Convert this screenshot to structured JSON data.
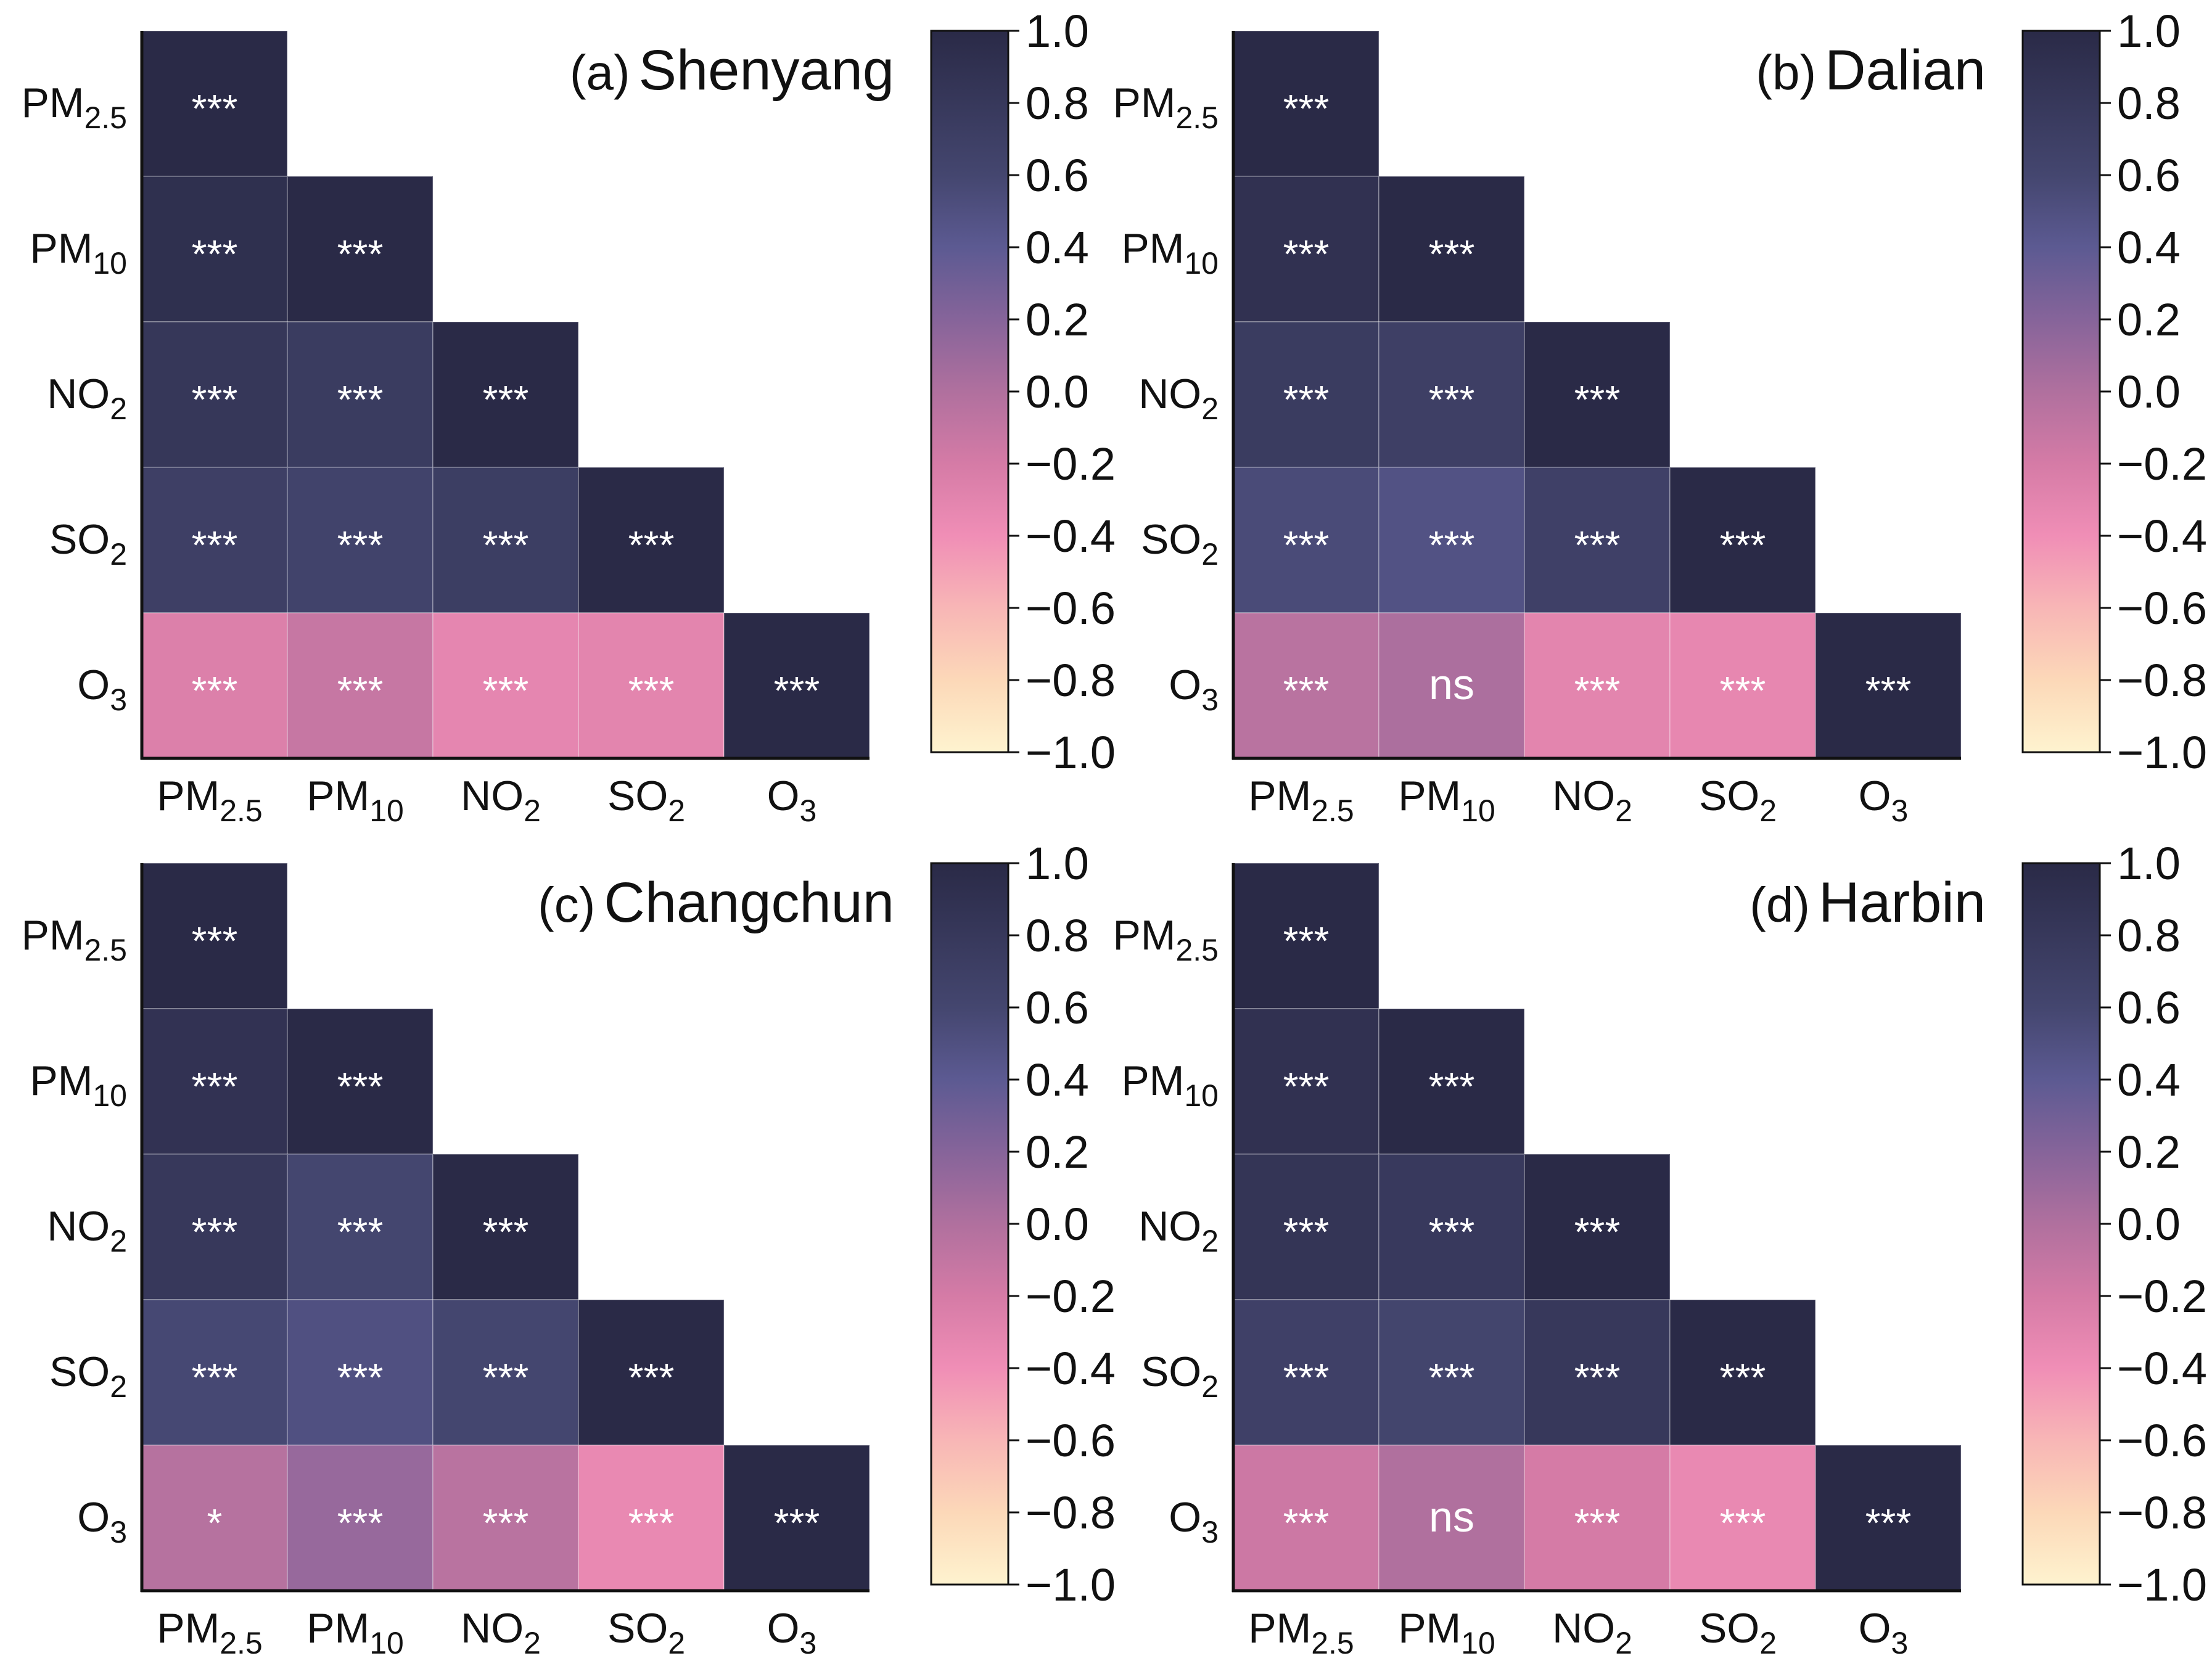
{
  "labels": [
    {
      "base": "PM",
      "sub": "2.5"
    },
    {
      "base": "PM",
      "sub": "10"
    },
    {
      "base": "NO",
      "sub": "2"
    },
    {
      "base": "SO",
      "sub": "2"
    },
    {
      "base": "O",
      "sub": "3"
    }
  ],
  "colorbar": {
    "ticks": [
      "1.0",
      "0.8",
      "0.6",
      "0.4",
      "0.2",
      "0.0",
      "−0.2",
      "−0.4",
      "−0.6",
      "−0.8",
      "−1.0"
    ],
    "tick_values": [
      1.0,
      0.8,
      0.6,
      0.4,
      0.2,
      0.0,
      -0.2,
      -0.4,
      -0.6,
      -0.8,
      -1.0
    ],
    "stops": [
      {
        "v": 1.0,
        "color": "#2a2a47"
      },
      {
        "v": 0.6,
        "color": "#44466f"
      },
      {
        "v": 0.4,
        "color": "#5c5a92"
      },
      {
        "v": 0.2,
        "color": "#86649a"
      },
      {
        "v": 0.0,
        "color": "#b0709e"
      },
      {
        "v": -0.2,
        "color": "#d57ba6"
      },
      {
        "v": -0.4,
        "color": "#f08eb6"
      },
      {
        "v": -0.6,
        "color": "#f8b6b6"
      },
      {
        "v": -0.8,
        "color": "#fcd8b8"
      },
      {
        "v": -1.0,
        "color": "#fef3cf"
      }
    ]
  },
  "chart_data": [
    {
      "type": "heatmap",
      "title_prefix": "(a)",
      "title": "Shenyang",
      "rows": [
        "PM2.5",
        "PM10",
        "NO2",
        "SO2",
        "O3"
      ],
      "cols": [
        "PM2.5",
        "PM10",
        "NO2",
        "SO2",
        "O3"
      ],
      "values": [
        [
          1.0
        ],
        [
          0.92,
          1.0
        ],
        [
          0.82,
          0.75,
          1.0
        ],
        [
          0.7,
          0.64,
          0.72,
          1.0
        ],
        [
          -0.25,
          -0.12,
          -0.32,
          -0.3,
          1.0
        ]
      ],
      "significance": [
        [
          "***"
        ],
        [
          "***",
          "***"
        ],
        [
          "***",
          "***",
          "***"
        ],
        [
          "***",
          "***",
          "***",
          "***"
        ],
        [
          "***",
          "***",
          "***",
          "***",
          "***"
        ]
      ],
      "vmin": -1.0,
      "vmax": 1.0
    },
    {
      "type": "heatmap",
      "title_prefix": "(b)",
      "title": "Dalian",
      "rows": [
        "PM2.5",
        "PM10",
        "NO2",
        "SO2",
        "O3"
      ],
      "cols": [
        "PM2.5",
        "PM10",
        "NO2",
        "SO2",
        "O3"
      ],
      "values": [
        [
          1.0
        ],
        [
          0.9,
          1.0
        ],
        [
          0.75,
          0.7,
          1.0
        ],
        [
          0.55,
          0.48,
          0.68,
          1.0
        ],
        [
          -0.05,
          0.02,
          -0.3,
          -0.33,
          1.0
        ]
      ],
      "significance": [
        [
          "***"
        ],
        [
          "***",
          "***"
        ],
        [
          "***",
          "***",
          "***"
        ],
        [
          "***",
          "***",
          "***",
          "***"
        ],
        [
          "***",
          "ns",
          "***",
          "***",
          "***"
        ]
      ],
      "vmin": -1.0,
      "vmax": 1.0
    },
    {
      "type": "heatmap",
      "title_prefix": "(c)",
      "title": "Changchun",
      "rows": [
        "PM2.5",
        "PM10",
        "NO2",
        "SO2",
        "O3"
      ],
      "cols": [
        "PM2.5",
        "PM10",
        "NO2",
        "SO2",
        "O3"
      ],
      "values": [
        [
          1.0
        ],
        [
          0.88,
          1.0
        ],
        [
          0.8,
          0.6,
          1.0
        ],
        [
          0.58,
          0.5,
          0.6,
          1.0
        ],
        [
          -0.03,
          0.12,
          -0.05,
          -0.35,
          1.0
        ]
      ],
      "significance": [
        [
          "***"
        ],
        [
          "***",
          "***"
        ],
        [
          "***",
          "***",
          "***"
        ],
        [
          "***",
          "***",
          "***",
          "***"
        ],
        [
          "*",
          "***",
          "***",
          "***",
          "***"
        ]
      ],
      "vmin": -1.0,
      "vmax": 1.0
    },
    {
      "type": "heatmap",
      "title_prefix": "(d)",
      "title": "Harbin",
      "rows": [
        "PM2.5",
        "PM10",
        "NO2",
        "SO2",
        "O3"
      ],
      "cols": [
        "PM2.5",
        "PM10",
        "NO2",
        "SO2",
        "O3"
      ],
      "values": [
        [
          1.0
        ],
        [
          0.9,
          1.0
        ],
        [
          0.85,
          0.78,
          1.0
        ],
        [
          0.68,
          0.62,
          0.8,
          1.0
        ],
        [
          -0.15,
          0.0,
          -0.2,
          -0.35,
          1.0
        ]
      ],
      "significance": [
        [
          "***"
        ],
        [
          "***",
          "***"
        ],
        [
          "***",
          "***",
          "***"
        ],
        [
          "***",
          "***",
          "***",
          "***"
        ],
        [
          "***",
          "ns",
          "***",
          "***",
          "***"
        ]
      ],
      "vmin": -1.0,
      "vmax": 1.0
    }
  ]
}
